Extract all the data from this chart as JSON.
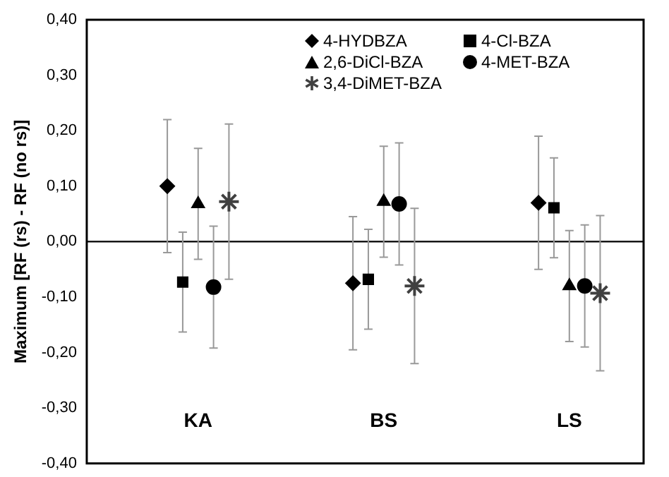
{
  "chart_data": {
    "type": "scatter",
    "ylabel": "Maximum [RF (rs) - RF (no rs)]",
    "categories": [
      "KA",
      "BS",
      "LS"
    ],
    "ylim": [
      -0.4,
      0.4
    ],
    "yticks": [
      {
        "value": -0.4,
        "label": "-0,40"
      },
      {
        "value": -0.3,
        "label": "-0,30"
      },
      {
        "value": -0.2,
        "label": "-0,20"
      },
      {
        "value": -0.1,
        "label": "-0,10"
      },
      {
        "value": 0,
        "label": "0,00"
      },
      {
        "value": 0.1,
        "label": "0,10"
      },
      {
        "value": 0.2,
        "label": "0,20"
      },
      {
        "value": 0.3,
        "label": "0,30"
      },
      {
        "value": 0.4,
        "label": "0,40"
      }
    ],
    "grid": false,
    "legend": "top right",
    "ref_lines": [
      {
        "axis": "y",
        "value": 0,
        "color": "#000000"
      }
    ],
    "series": [
      {
        "name": "4-HYDBZA",
        "color": "#000000",
        "marker": "diamond",
        "values": [
          0.1,
          -0.075,
          0.07
        ],
        "errors": [
          0.12,
          0.12,
          0.12
        ]
      },
      {
        "name": "4-Cl-BZA",
        "color": "#000000",
        "marker": "square",
        "values": [
          -0.073,
          -0.068,
          0.061
        ],
        "errors": [
          0.09,
          0.09,
          0.09
        ]
      },
      {
        "name": "2,6-DiCl-BZA",
        "color": "#000000",
        "marker": "triangle",
        "values": [
          0.068,
          0.072,
          -0.08
        ],
        "errors": [
          0.1,
          0.1,
          0.1
        ]
      },
      {
        "name": "4-MET-BZA",
        "color": "#000000",
        "marker": "circle",
        "values": [
          -0.082,
          0.068,
          -0.08
        ],
        "errors": [
          0.11,
          0.11,
          0.11
        ]
      },
      {
        "name": "3,4-DiMET-BZA",
        "color": "#404040",
        "marker": "cross",
        "values": [
          0.072,
          -0.08,
          -0.093
        ],
        "errors": [
          0.14,
          0.14,
          0.14
        ]
      }
    ]
  }
}
